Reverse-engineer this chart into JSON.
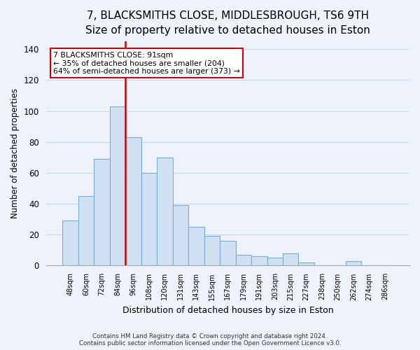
{
  "title": "7, BLACKSMITHS CLOSE, MIDDLESBROUGH, TS6 9TH",
  "subtitle": "Size of property relative to detached houses in Eston",
  "xlabel": "Distribution of detached houses by size in Eston",
  "ylabel": "Number of detached properties",
  "bar_labels": [
    "48sqm",
    "60sqm",
    "72sqm",
    "84sqm",
    "96sqm",
    "108sqm",
    "120sqm",
    "131sqm",
    "143sqm",
    "155sqm",
    "167sqm",
    "179sqm",
    "191sqm",
    "203sqm",
    "215sqm",
    "227sqm",
    "238sqm",
    "250sqm",
    "262sqm",
    "274sqm",
    "286sqm"
  ],
  "bar_values": [
    29,
    45,
    69,
    103,
    83,
    60,
    70,
    39,
    25,
    19,
    16,
    7,
    6,
    5,
    8,
    2,
    0,
    0,
    3,
    0,
    0
  ],
  "bar_color": "#cfe0f0",
  "bar_edge_color": "#7aaed6",
  "vline_x_index": 4,
  "vline_color": "#cc0000",
  "ylim": [
    0,
    145
  ],
  "yticks": [
    0,
    20,
    40,
    60,
    80,
    100,
    120,
    140
  ],
  "annotation_title": "7 BLACKSMITHS CLOSE: 91sqm",
  "annotation_line1": "← 35% of detached houses are smaller (204)",
  "annotation_line2": "64% of semi-detached houses are larger (373) →",
  "annotation_box_facecolor": "#ffffff",
  "annotation_box_edgecolor": "#cc0000",
  "footer1": "Contains HM Land Registry data © Crown copyright and database right 2024.",
  "footer2": "Contains public sector information licensed under the Open Government Licence v3.0.",
  "fig_facecolor": "#eef2fb",
  "axes_facecolor": "#eef2fb",
  "grid_color": "#c8d8ec",
  "title_fontsize": 11,
  "subtitle_fontsize": 9.5
}
